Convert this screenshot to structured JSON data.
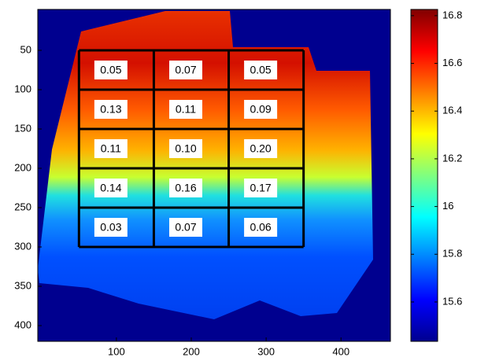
{
  "chart_data": {
    "type": "image",
    "xlim": [
      -5,
      466
    ],
    "ylim": [
      -2,
      420
    ],
    "y_reversed": true,
    "xticks": [
      100,
      200,
      300,
      400
    ],
    "yticks": [
      50,
      100,
      150,
      200,
      250,
      300,
      350,
      400
    ],
    "grid_x": [
      50,
      150,
      250,
      350
    ],
    "grid_y": [
      50,
      100,
      150,
      200,
      250,
      300
    ],
    "cells": [
      [
        0.05,
        0.07,
        0.05
      ],
      [
        0.13,
        0.11,
        0.09
      ],
      [
        0.11,
        0.1,
        0.2
      ],
      [
        0.14,
        0.16,
        0.17
      ],
      [
        0.03,
        0.07,
        0.06
      ]
    ],
    "value_labels": [
      [
        "0.05",
        "0.07",
        "0.05"
      ],
      [
        "0.13",
        "0.11",
        "0.09"
      ],
      [
        "0.11",
        "0.10",
        "0.20"
      ],
      [
        "0.14",
        "0.16",
        "0.17"
      ],
      [
        "0.03",
        "0.07",
        "0.06"
      ]
    ],
    "colorbar": {
      "clim": [
        15.435,
        16.826
      ],
      "ticks": [
        15.6,
        {
          "value": 15.8,
          "label": "15.8"
        },
        {
          "value": 16,
          "label": "16"
        },
        16.2,
        16.4,
        16.6,
        16.8
      ]
    }
  }
}
